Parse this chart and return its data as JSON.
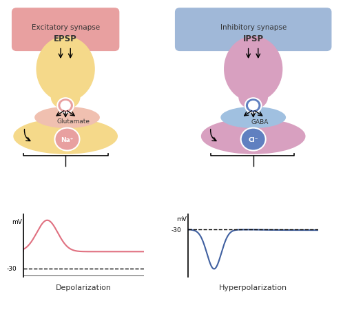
{
  "background_color": "#ffffff",
  "left_panel": {
    "title_line1": "Excitatory synapse",
    "title_line2": "EPSP",
    "title_bg": "#e8a0a0",
    "neuron_color": "#f5d98a",
    "vesicle_color": "#e8a0a0",
    "synapse_ellipse_color": "#f0c0b0",
    "ion_circle_color": "#e8a0a0",
    "ion_label": "Na⁺",
    "neurotransmitter_label": "Glutamate",
    "bottom_label": "Depolarization",
    "bottom_bg": "#f0a0a0",
    "curve_color": "#e07080",
    "ylabel": "mV",
    "dashed_label": "-30"
  },
  "right_panel": {
    "title_line1": "Inhibitory synapse",
    "title_line2": "IPSP",
    "title_bg": "#a0b8d8",
    "neuron_color": "#d8a0c0",
    "vesicle_color": "#6080c0",
    "synapse_ellipse_color": "#a0c0e0",
    "ion_circle_color": "#6080c0",
    "ion_label": "Cl⁻",
    "neurotransmitter_label": "GABA",
    "bottom_label": "Hyperpolarization",
    "bottom_bg": "#a0b8d8",
    "curve_color": "#4060a0",
    "ylabel": "mV",
    "dashed_label": "-30"
  }
}
